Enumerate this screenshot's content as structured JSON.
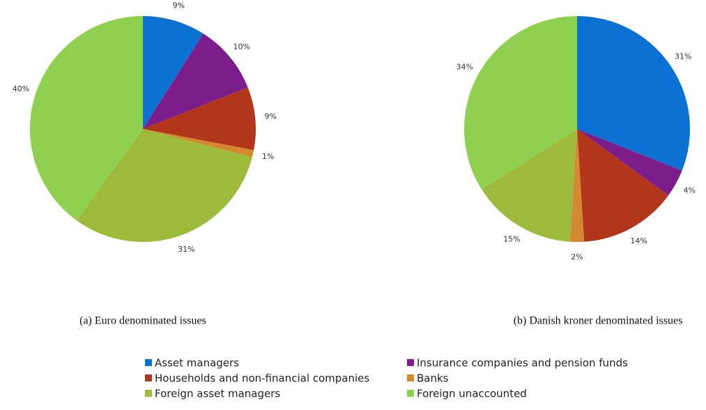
{
  "chart_data": [
    {
      "type": "pie",
      "caption": "(a) Euro denominated issues",
      "values": [
        9,
        10,
        9,
        1,
        31,
        40
      ],
      "value_labels": [
        "9%",
        "10%",
        "9%",
        "1%",
        "31%",
        "40%"
      ]
    },
    {
      "type": "pie",
      "caption": "(b) Danish kroner denominated issues",
      "values": [
        31,
        4,
        14,
        2,
        15,
        34
      ],
      "value_labels": [
        "31%",
        "4%",
        "14%",
        "2%",
        "15%",
        "34%"
      ]
    }
  ],
  "legend": {
    "categories": [
      "Asset managers",
      "Insurance companies and pension funds",
      "Households and non-financial companies",
      "Banks",
      "Foreign asset managers",
      "Foreign unaccounted"
    ],
    "colors": [
      "#0b72d2",
      "#7d1d8c",
      "#b1361b",
      "#d4882f",
      "#9dba3b",
      "#8fd04f"
    ]
  }
}
